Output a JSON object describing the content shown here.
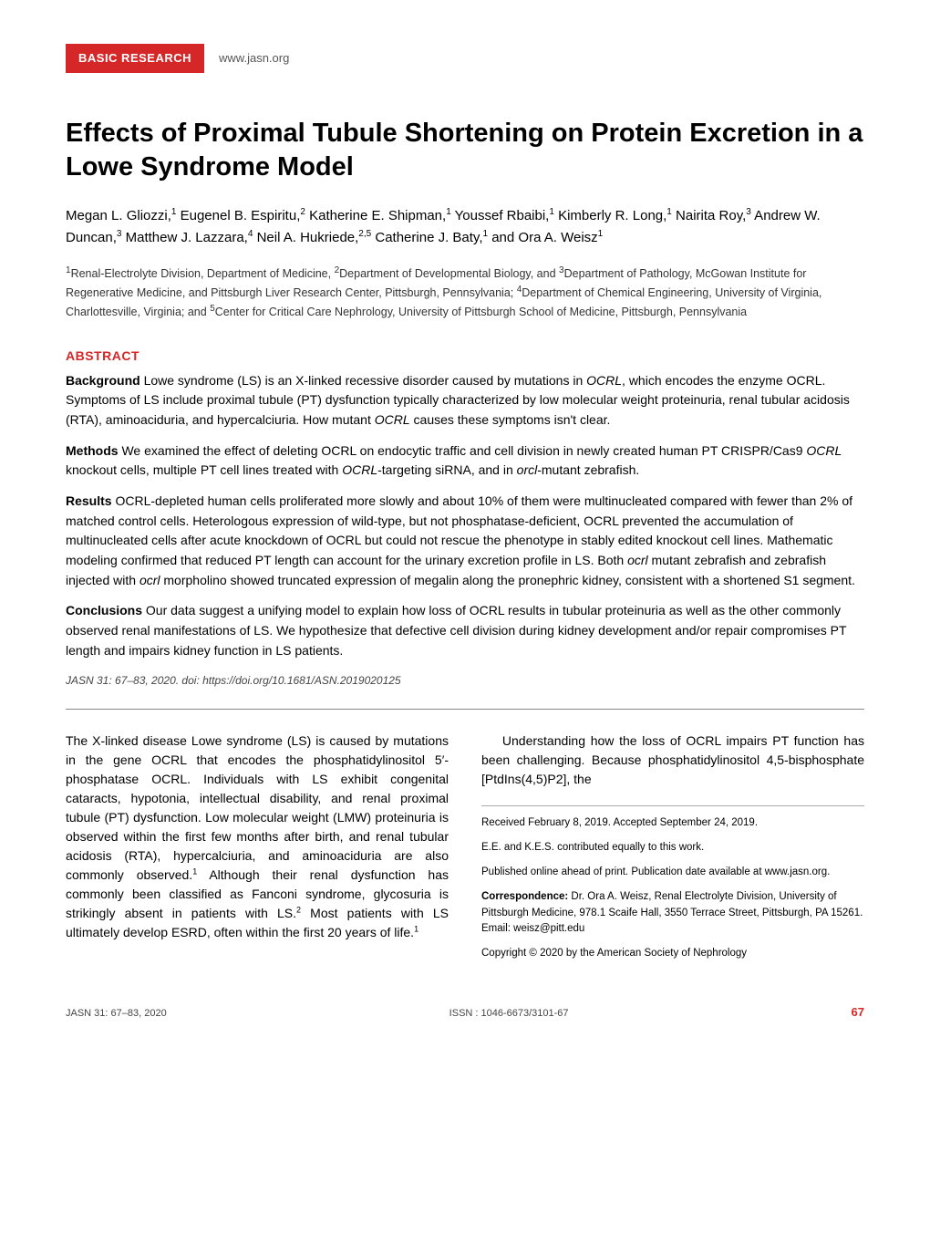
{
  "header": {
    "category": "BASIC RESEARCH",
    "website": "www.jasn.org"
  },
  "title": "Effects of Proximal Tubule Shortening on Protein Excretion in a Lowe Syndrome Model",
  "authors_html": "Megan L. Gliozzi,<span class='sup'>1</span> Eugenel B. Espiritu,<span class='sup'>2</span> Katherine E. Shipman,<span class='sup'>1</span> Youssef Rbaibi,<span class='sup'>1</span> Kimberly R. Long,<span class='sup'>1</span> Nairita Roy,<span class='sup'>3</span> Andrew W. Duncan,<span class='sup'>3</span> Matthew J. Lazzara,<span class='sup'>4</span> Neil A. Hukriede,<span class='sup'>2,5</span> Catherine J. Baty,<span class='sup'>1</span> and Ora A. Weisz<span class='sup'>1</span>",
  "affiliations_html": "<span class='sup'>1</span>Renal-Electrolyte Division, Department of Medicine, <span class='sup'>2</span>Department of Developmental Biology, and <span class='sup'>3</span>Department of Pathology, McGowan Institute for Regenerative Medicine, and Pittsburgh Liver Research Center, Pittsburgh, Pennsylvania; <span class='sup'>4</span>Department of Chemical Engineering, University of Virginia, Charlottesville, Virginia; and <span class='sup'>5</span>Center for Critical Care Nephrology, University of Pittsburgh School of Medicine, Pittsburgh, Pennsylvania",
  "abstract": {
    "heading": "ABSTRACT",
    "background": "<span class='label'>Background</span> Lowe syndrome (LS) is an X-linked recessive disorder caused by mutations in <span class='ital'>OCRL</span>, which encodes the enzyme OCRL. Symptoms of LS include proximal tubule (PT) dysfunction typically characterized by low molecular weight proteinuria, renal tubular acidosis (RTA), aminoaciduria, and hypercalciuria. How mutant <span class='ital'>OCRL</span> causes these symptoms isn't clear.",
    "methods": "<span class='label'>Methods</span> We examined the effect of deleting OCRL on endocytic traffic and cell division in newly created human PT CRISPR/Cas9 <span class='ital'>OCRL</span> knockout cells, multiple PT cell lines treated with <span class='ital'>OCRL</span>-targeting siRNA, and in <span class='ital'>orcl</span>-mutant zebrafish.",
    "results": "<span class='label'>Results</span> OCRL-depleted human cells proliferated more slowly and about 10% of them were multinucleated compared with fewer than 2% of matched control cells. Heterologous expression of wild-type, but not phosphatase-deficient, OCRL prevented the accumulation of multinucleated cells after acute knockdown of OCRL but could not rescue the phenotype in stably edited knockout cell lines. Mathematic modeling confirmed that reduced PT length can account for the urinary excretion profile in LS. Both <span class='ital'>ocrl</span> mutant zebrafish and zebrafish injected with <span class='ital'>ocrl</span> morpholino showed truncated expression of megalin along the pronephric kidney, consistent with a shortened S1 segment.",
    "conclusions": "<span class='label'>Conclusions</span> Our data suggest a unifying model to explain how loss of OCRL results in tubular proteinuria as well as the other commonly observed renal manifestations of LS. We hypothesize that defective cell division during kidney development and/or repair compromises PT length and impairs kidney function in LS patients."
  },
  "doi_line": "JASN 31: 67–83, 2020. doi: https://doi.org/10.1681/ASN.2019020125",
  "left_col_html": "The X-linked disease Lowe syndrome (LS) is caused by mutations in the gene <span class='ital'>OCRL</span> that encodes the phosphatidylinositol 5′-phosphatase OCRL. Individuals with LS exhibit congenital cataracts, hypotonia, intellectual disability, and renal proximal tubule (PT) dysfunction. Low molecular weight (LMW) proteinuria is observed within the first few months after birth, and renal tubular acidosis (RTA), hypercalciuria, and aminoaciduria are also commonly observed.<sup>1</sup> Although their renal dysfunction has commonly been classified as Fanconi syndrome, glycosuria is strikingly absent in patients with LS.<sup>2</sup> Most patients with LS ultimately develop ESRD, often within the first 20 years of life.<sup>1</sup>",
  "right_col_intro_html": "&nbsp;&nbsp;&nbsp;&nbsp;Understanding how the loss of OCRL impairs PT function has been challenging. Because phosphatidylinositol 4,5-bisphosphate [PtdIns(4,5)P2], the",
  "sidebar": {
    "received": "Received February 8, 2019. Accepted September 24, 2019.",
    "equal": "E.E. and K.E.S. contributed equally to this work.",
    "published": "Published online ahead of print. Publication date available at www.jasn.org.",
    "correspondence": "<span class='bold'>Correspondence:</span> Dr. Ora A. Weisz, Renal Electrolyte Division, University of Pittsburgh Medicine, 978.1 Scaife Hall, 3550 Terrace Street, Pittsburgh, PA 15261. Email: weisz@pitt.edu",
    "copyright": "Copyright © 2020 by the American Society of Nephrology"
  },
  "footer": {
    "left": "JASN 31: 67–83, 2020",
    "center": "ISSN : 1046-6673/3101-67",
    "page": "67"
  },
  "colors": {
    "accent": "#d62728",
    "text": "#000000",
    "muted": "#555555",
    "rule": "#888888"
  }
}
